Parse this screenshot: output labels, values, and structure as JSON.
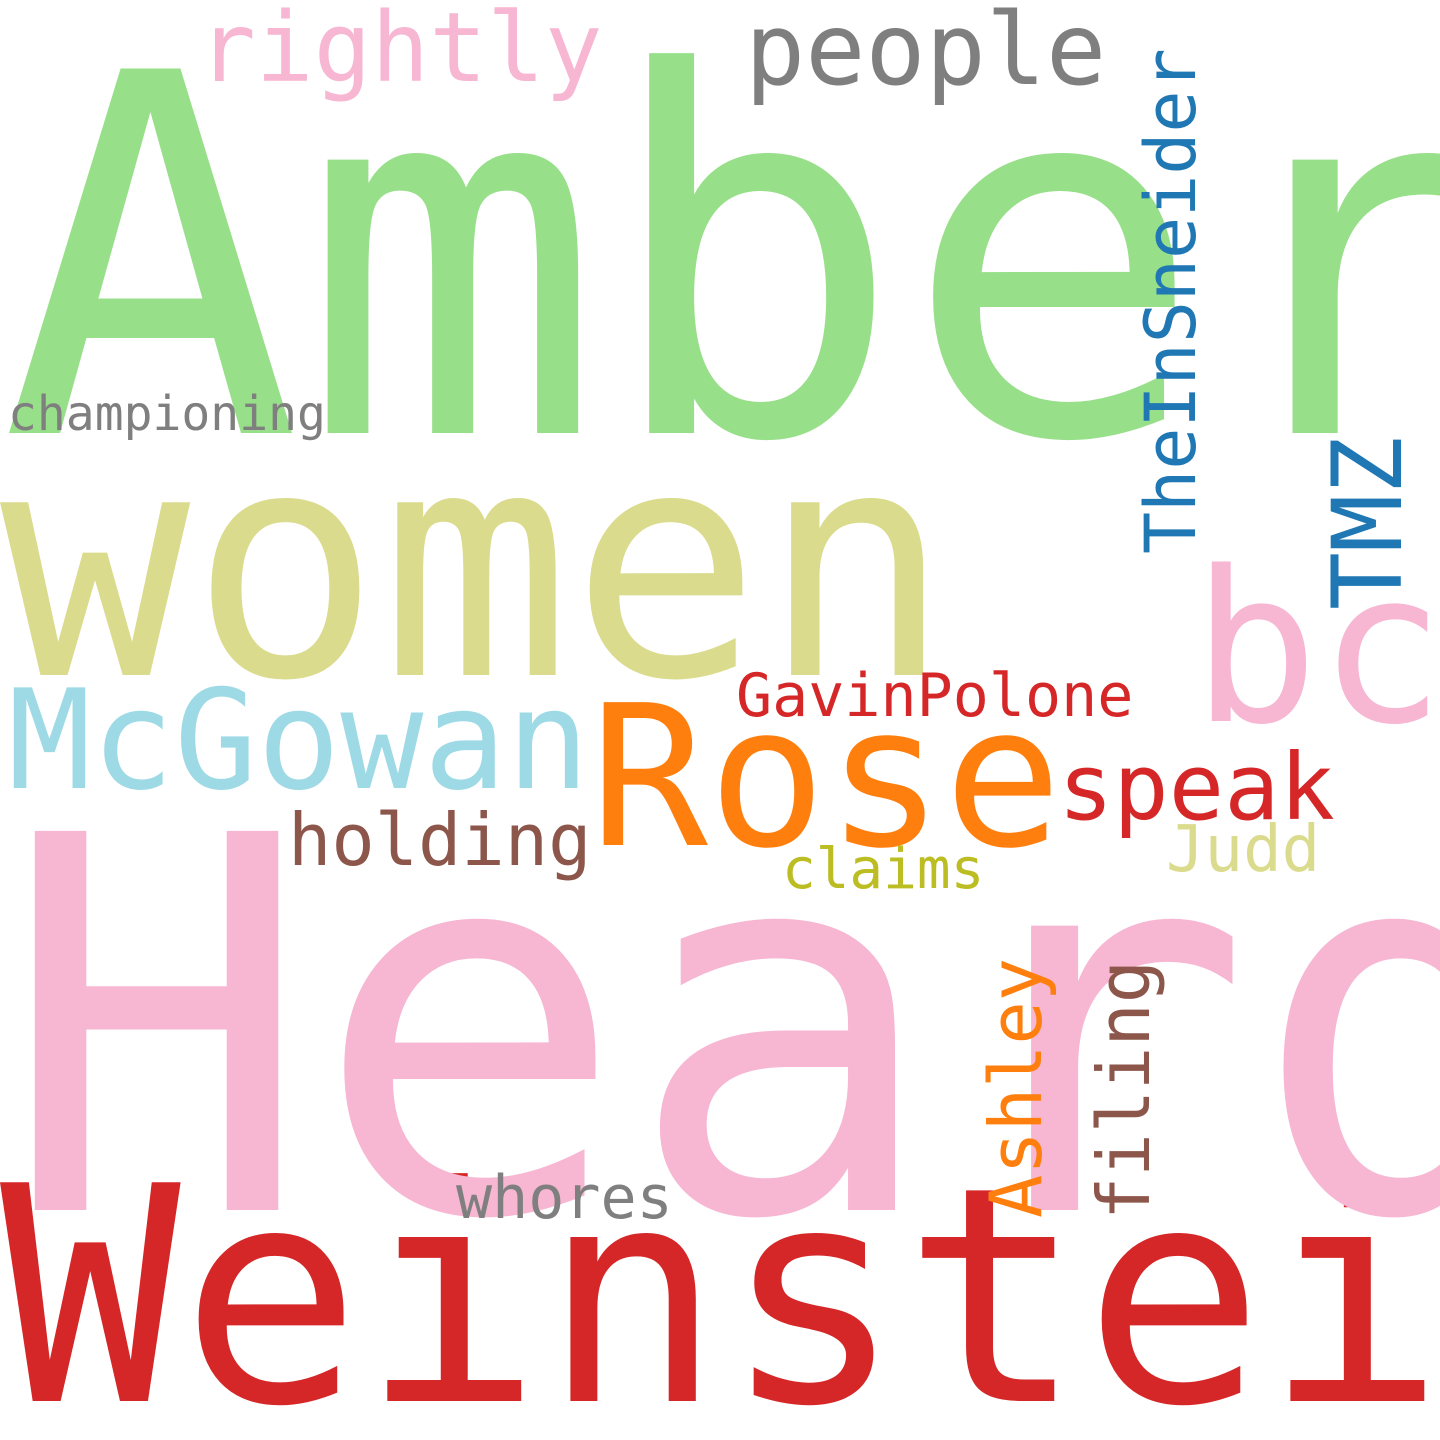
{
  "words": [
    {
      "text": "Amber",
      "color": "#98df8a"
    },
    {
      "text": "women",
      "color": "#dbdb8d"
    },
    {
      "text": "Weinstein",
      "color": "#d62728"
    },
    {
      "text": "Heard",
      "color": "#f7b6d2"
    },
    {
      "text": "bc",
      "color": "#f7b6d2"
    },
    {
      "text": "Rose",
      "color": "#ff7f0e"
    },
    {
      "text": "McGowan",
      "color": "#9edae5"
    },
    {
      "text": "people",
      "color": "#7f7f7f"
    },
    {
      "text": "rightly",
      "color": "#f7b6d2"
    },
    {
      "text": "speak",
      "color": "#d62728"
    },
    {
      "text": "holding",
      "color": "#8c564b"
    },
    {
      "text": "GavinPolone",
      "color": "#d62728"
    },
    {
      "text": "Judd",
      "color": "#dbdb8d"
    },
    {
      "text": "claims",
      "color": "#bcbd22"
    },
    {
      "text": "championing",
      "color": "#7f7f7f"
    },
    {
      "text": "whores",
      "color": "#7f7f7f"
    },
    {
      "text": "TheInSneider",
      "color": "#1f77b4"
    },
    {
      "text": "TMZ",
      "color": "#1f77b4"
    },
    {
      "text": "Ashley",
      "color": "#ff7f0e"
    },
    {
      "text": "filing",
      "color": "#8c564b"
    }
  ]
}
